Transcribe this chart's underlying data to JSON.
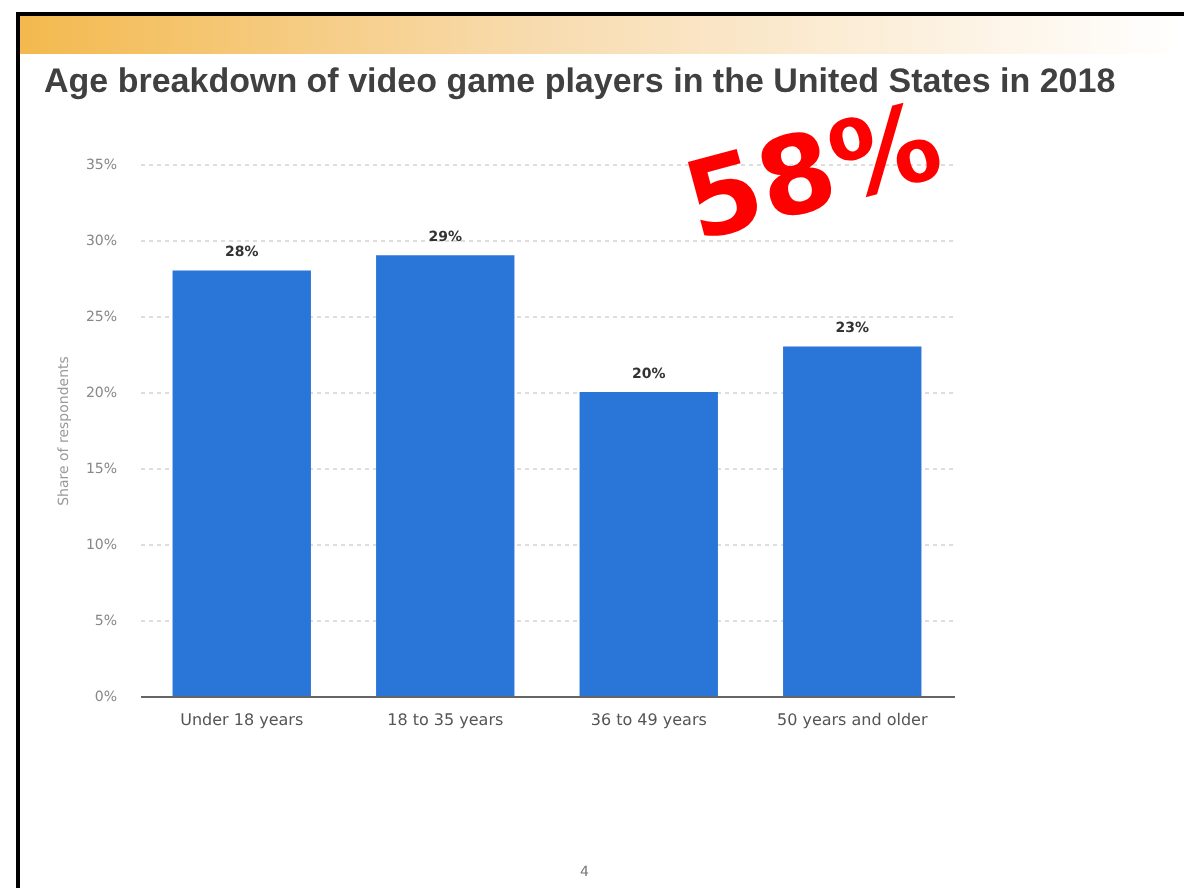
{
  "chart_data": {
    "type": "bar",
    "title": "Age breakdown of video game players in the United States in 2018",
    "ylabel": "Share of respondents",
    "categories": [
      "Under 18 years",
      "18 to 35 years",
      "36 to 49 years",
      "50 years and older"
    ],
    "values": [
      28,
      29,
      20,
      23
    ],
    "color": "#2a76d8",
    "value_labels": [
      "28%",
      "29%",
      "20%",
      "23%"
    ],
    "ylim": [
      0,
      35
    ],
    "yticks": [
      {
        "value": 0,
        "label": "0%"
      },
      {
        "value": 5,
        "label": "5%"
      },
      {
        "value": 10,
        "label": "10%"
      },
      {
        "value": 15,
        "label": "15%"
      },
      {
        "value": 20,
        "label": "20%"
      },
      {
        "value": 25,
        "label": "25%"
      },
      {
        "value": 30,
        "label": "30%"
      },
      {
        "value": 35,
        "label": "35%"
      }
    ],
    "grid": "y",
    "annotations": [
      "58%",
      "4"
    ]
  }
}
